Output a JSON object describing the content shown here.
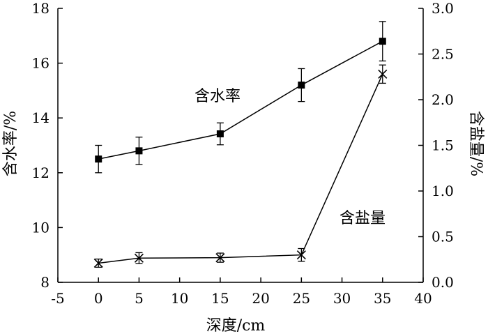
{
  "chart_data": {
    "type": "line",
    "xlabel": "深度/cm",
    "ylabel_left": "含水率/%",
    "ylabel_right": "含盐量/%",
    "xlim": [
      -5,
      40
    ],
    "xticks": [
      "-5",
      "0",
      "5",
      "10",
      "15",
      "20",
      "25",
      "30",
      "35",
      "40"
    ],
    "ylim_left": [
      8,
      18
    ],
    "yticks_left": [
      "8",
      "10",
      "12",
      "14",
      "16",
      "18"
    ],
    "ylim_right": [
      0.0,
      3.0
    ],
    "yticks_right": [
      "0.0",
      "0.5",
      "1.0",
      "1.5",
      "2.0",
      "2.5",
      "3.0"
    ],
    "grid": false,
    "series": [
      {
        "name": "含水率",
        "axis": "left",
        "marker": "square",
        "color": "#000000",
        "x": [
          0,
          5,
          15,
          25,
          35
        ],
        "values": [
          12.5,
          12.8,
          13.42,
          15.2,
          16.8
        ],
        "error": [
          0.5,
          0.5,
          0.4,
          0.6,
          0.72
        ]
      },
      {
        "name": "含盐量",
        "axis": "right",
        "marker": "x",
        "color": "#000000",
        "x": [
          0,
          5,
          15,
          25,
          35
        ],
        "values": [
          0.21,
          0.265,
          0.27,
          0.3,
          2.28
        ],
        "error": [
          0.045,
          0.06,
          0.05,
          0.07,
          0.1
        ]
      }
    ]
  }
}
